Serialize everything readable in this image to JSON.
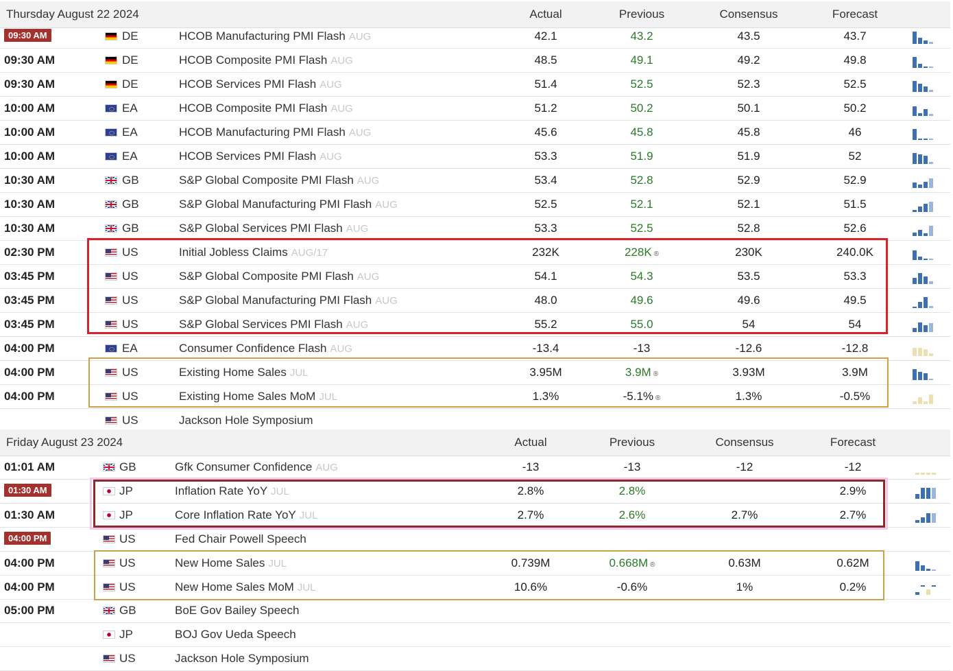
{
  "sections": [
    {
      "date": "Thursday August 22 2024",
      "columns": {
        "actual": "Actual",
        "previous": "Previous",
        "consensus": "Consensus",
        "forecast": "Forecast"
      },
      "rows": [
        {
          "time": "09:30 AM",
          "badge": true,
          "country": "DE",
          "event": "HCOB Manufacturing PMI Flash",
          "period": "AUG",
          "actual": "42.1",
          "previous": "43.2",
          "previous_color": "green",
          "consensus": "43.5",
          "forecast": "43.7",
          "spark": "bars-blue"
        },
        {
          "time": "09:30 AM",
          "country": "DE",
          "event": "HCOB Composite PMI Flash",
          "period": "AUG",
          "actual": "48.5",
          "previous": "49.1",
          "previous_color": "green",
          "consensus": "49.2",
          "forecast": "49.8",
          "spark": "bars-blue"
        },
        {
          "time": "09:30 AM",
          "country": "DE",
          "event": "HCOB Services PMI Flash",
          "period": "AUG",
          "actual": "51.4",
          "previous": "52.5",
          "previous_color": "green",
          "consensus": "52.3",
          "forecast": "52.5",
          "spark": "bars-blue"
        },
        {
          "time": "10:00 AM",
          "country": "EA",
          "event": "HCOB Composite PMI Flash",
          "period": "AUG",
          "actual": "51.2",
          "previous": "50.2",
          "previous_color": "green",
          "consensus": "50.1",
          "forecast": "50.2",
          "spark": "bars-blue"
        },
        {
          "time": "10:00 AM",
          "country": "EA",
          "event": "HCOB Manufacturing PMI Flash",
          "period": "AUG",
          "actual": "45.6",
          "previous": "45.8",
          "previous_color": "green",
          "consensus": "45.8",
          "forecast": "46",
          "spark": "bars-blue"
        },
        {
          "time": "10:00 AM",
          "country": "EA",
          "event": "HCOB Services PMI Flash",
          "period": "AUG",
          "actual": "53.3",
          "previous": "51.9",
          "previous_color": "green",
          "consensus": "51.9",
          "forecast": "52",
          "spark": "bars-blue"
        },
        {
          "time": "10:30 AM",
          "country": "GB",
          "event": "S&P Global Composite PMI Flash",
          "period": "AUG",
          "actual": "53.4",
          "previous": "52.8",
          "previous_color": "green",
          "consensus": "52.9",
          "forecast": "52.9",
          "spark": "bars-blue"
        },
        {
          "time": "10:30 AM",
          "country": "GB",
          "event": "S&P Global Manufacturing PMI Flash",
          "period": "AUG",
          "actual": "52.5",
          "previous": "52.1",
          "previous_color": "green",
          "consensus": "52.1",
          "forecast": "51.5",
          "spark": "bars-blue"
        },
        {
          "time": "10:30 AM",
          "country": "GB",
          "event": "S&P Global Services PMI Flash",
          "period": "AUG",
          "actual": "53.3",
          "previous": "52.5",
          "previous_color": "green",
          "consensus": "52.8",
          "forecast": "52.6",
          "spark": "bars-blue"
        },
        {
          "time": "02:30 PM",
          "country": "US",
          "event": "Initial Jobless Claims",
          "period": "AUG/17",
          "actual": "232K",
          "previous": "228K",
          "previous_color": "green",
          "revised": true,
          "consensus": "230K",
          "forecast": "240.0K",
          "spark": "bars-blue"
        },
        {
          "time": "03:45 PM",
          "country": "US",
          "event": "S&P Global Composite PMI Flash",
          "period": "AUG",
          "actual": "54.1",
          "previous": "54.3",
          "previous_color": "green",
          "consensus": "53.5",
          "forecast": "53.3",
          "spark": "bars-blue"
        },
        {
          "time": "03:45 PM",
          "country": "US",
          "event": "S&P Global Manufacturing PMI Flash",
          "period": "AUG",
          "actual": "48.0",
          "previous": "49.6",
          "previous_color": "green",
          "consensus": "49.6",
          "forecast": "49.5",
          "spark": "bars-blue"
        },
        {
          "time": "03:45 PM",
          "country": "US",
          "event": "S&P Global Services PMI Flash",
          "period": "AUG",
          "actual": "55.2",
          "previous": "55.0",
          "previous_color": "green",
          "consensus": "54",
          "forecast": "54",
          "spark": "bars-blue"
        },
        {
          "time": "04:00 PM",
          "country": "EA",
          "event": "Consumer Confidence Flash",
          "period": "AUG",
          "actual": "-13.4",
          "previous": "-13",
          "previous_color": "plain",
          "consensus": "-12.6",
          "forecast": "-12.8",
          "spark": "bars-beige"
        },
        {
          "time": "04:00 PM",
          "country": "US",
          "event": "Existing Home Sales",
          "period": "JUL",
          "actual": "3.95M",
          "previous": "3.9M",
          "previous_color": "green",
          "revised": true,
          "consensus": "3.93M",
          "forecast": "3.9M",
          "spark": "bars-blue"
        },
        {
          "time": "04:00 PM",
          "country": "US",
          "event": "Existing Home Sales MoM",
          "period": "JUL",
          "actual": "1.3%",
          "previous": "-5.1%",
          "previous_color": "plain",
          "revised": true,
          "consensus": "1.3%",
          "forecast": "-0.5%",
          "spark": "bars-beige"
        },
        {
          "time": "",
          "country": "US",
          "event": "Jackson Hole Symposium",
          "period": "",
          "actual": "",
          "previous": "",
          "consensus": "",
          "forecast": "",
          "spark": "none"
        }
      ]
    },
    {
      "date": "Friday August 23 2024",
      "columns": {
        "actual": "Actual",
        "previous": "Previous",
        "consensus": "Consensus",
        "forecast": "Forecast"
      },
      "rows": [
        {
          "time": "01:01 AM",
          "country": "GB",
          "event": "Gfk Consumer Confidence",
          "period": "AUG",
          "actual": "-13",
          "previous": "-13",
          "previous_color": "plain",
          "consensus": "-12",
          "forecast": "-12",
          "spark": "bars-beige"
        },
        {
          "time": "01:30 AM",
          "badge": true,
          "country": "JP",
          "event": "Inflation Rate YoY",
          "period": "JUL",
          "actual": "2.8%",
          "previous": "2.8%",
          "previous_color": "green",
          "consensus": "",
          "forecast": "2.9%",
          "spark": "bars-blue"
        },
        {
          "time": "01:30 AM",
          "country": "JP",
          "event": "Core Inflation Rate YoY",
          "period": "JUL",
          "actual": "2.7%",
          "previous": "2.6%",
          "previous_color": "green",
          "consensus": "2.7%",
          "forecast": "2.7%",
          "spark": "bars-blue"
        },
        {
          "time": "04:00 PM",
          "badge": true,
          "country": "US",
          "event": "Fed Chair Powell Speech",
          "period": "",
          "actual": "",
          "previous": "",
          "consensus": "",
          "forecast": "",
          "spark": "none"
        },
        {
          "time": "04:00 PM",
          "country": "US",
          "event": "New Home Sales",
          "period": "JUL",
          "actual": "0.739M",
          "previous": "0.668M",
          "previous_color": "green",
          "revised": true,
          "consensus": "0.63M",
          "forecast": "0.62M",
          "spark": "bars-blue"
        },
        {
          "time": "04:00 PM",
          "country": "US",
          "event": "New Home Sales MoM",
          "period": "JUL",
          "actual": "10.6%",
          "previous": "-0.6%",
          "previous_color": "plain",
          "consensus": "1%",
          "forecast": "0.2%",
          "spark": "bars-mixed"
        },
        {
          "time": "05:00 PM",
          "country": "GB",
          "event": "BoE Gov Bailey Speech",
          "period": "",
          "actual": "",
          "previous": "",
          "consensus": "",
          "forecast": "",
          "spark": "none"
        },
        {
          "time": "",
          "country": "JP",
          "event": "BOJ Gov Ueda Speech",
          "period": "",
          "actual": "",
          "previous": "",
          "consensus": "",
          "forecast": "",
          "spark": "none"
        },
        {
          "time": "",
          "country": "US",
          "event": "Jackson Hole Symposium",
          "period": "",
          "actual": "",
          "previous": "",
          "consensus": "",
          "forecast": "",
          "spark": "none"
        }
      ]
    }
  ],
  "highlight_colors": {
    "red": "#d9212a",
    "gold": "#c9a24a",
    "maroon": "#8b2b2b",
    "pink": "#f3c9ec"
  },
  "icons": {
    "revised": "revised-icon",
    "sparkline": "sparkline-icon",
    "flag": "country-flag-icon"
  }
}
